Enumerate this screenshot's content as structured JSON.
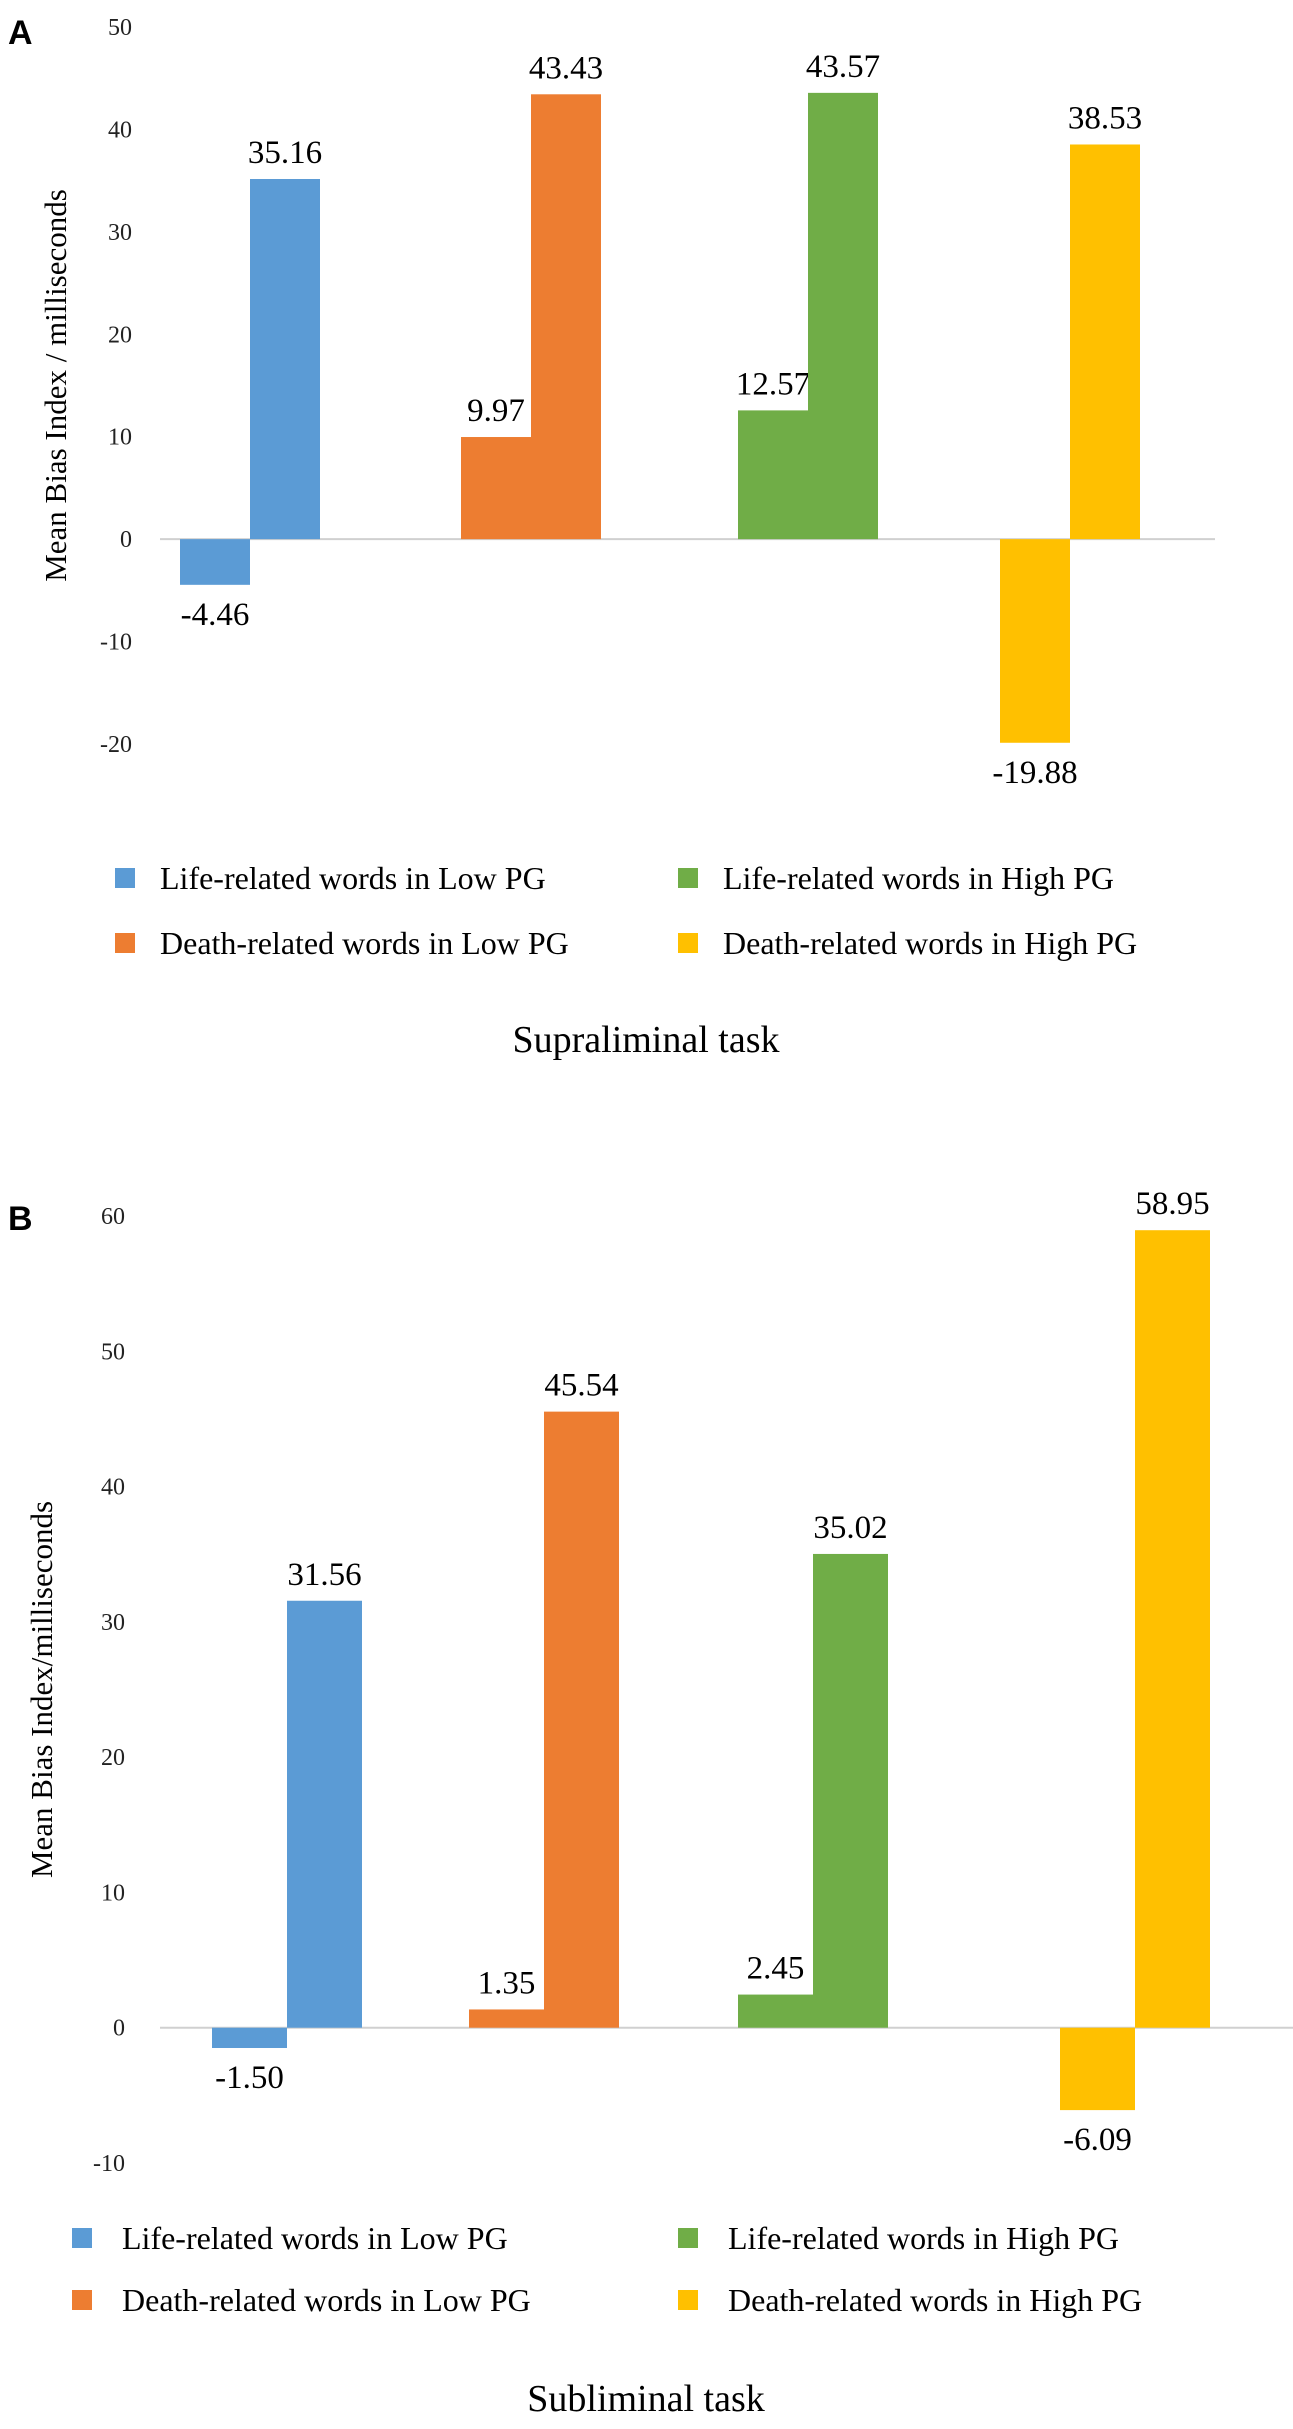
{
  "colors": {
    "life_low": "#5b9bd5",
    "death_low": "#ed7d31",
    "life_high": "#70ad47",
    "death_high": "#ffc000",
    "axis": "#d0d0d0"
  },
  "chart_data": [
    {
      "panel": "A",
      "type": "bar",
      "caption": "Supraliminal task",
      "ylabel": "Mean Bias Index / milliseconds",
      "ylim": [
        -20,
        50
      ],
      "yticks": [
        "50",
        "40",
        "30",
        "20",
        "10",
        "0",
        "-10",
        "-20"
      ],
      "legend_position": "bottom",
      "series": [
        {
          "name": "Life-related words in Low PG",
          "color_key": "life_low",
          "value": -4.46,
          "label": "-4.46"
        },
        {
          "name": "Death-related words in Low PG",
          "color_key": "death_low",
          "value": 9.97,
          "label": "9.97"
        },
        {
          "name": "Life-related words in High PG",
          "color_key": "life_high",
          "value": 12.57,
          "label": "12.57"
        },
        {
          "name": "Death-related words in High PG",
          "color_key": "death_high",
          "value": -19.88,
          "label": "-19.88"
        }
      ],
      "bars": [
        {
          "series": 0,
          "value": 35.16,
          "label": "35.16"
        },
        {
          "series": 1,
          "value": 43.43,
          "label": "43.43"
        },
        {
          "series": 2,
          "value": 43.57,
          "label": "43.57"
        },
        {
          "series": 3,
          "value": 38.53,
          "label": "38.53"
        }
      ]
    },
    {
      "panel": "B",
      "type": "bar",
      "caption": "Subliminal task",
      "ylabel": "Mean Bias Index/milliseconds",
      "ylim": [
        -10,
        60
      ],
      "yticks": [
        "60",
        "50",
        "40",
        "30",
        "20",
        "10",
        "0",
        "-10"
      ],
      "legend_position": "bottom",
      "series": [
        {
          "name": "Life-related words in Low PG",
          "color_key": "life_low",
          "value": -1.5,
          "label": "-1.50"
        },
        {
          "name": "Death-related words in Low PG",
          "color_key": "death_low",
          "value": 1.35,
          "label": "1.35"
        },
        {
          "name": "Life-related words in High PG",
          "color_key": "life_high",
          "value": 2.45,
          "label": "2.45"
        },
        {
          "name": "Death-related words in High PG",
          "color_key": "death_high",
          "value": -6.09,
          "label": "-6.09"
        }
      ],
      "bars": [
        {
          "series": 0,
          "value": 31.56,
          "label": "31.56"
        },
        {
          "series": 1,
          "value": 45.54,
          "label": "45.54"
        },
        {
          "series": 2,
          "value": 35.02,
          "label": "35.02"
        },
        {
          "series": 3,
          "value": 58.95,
          "label": "58.95"
        }
      ]
    }
  ]
}
